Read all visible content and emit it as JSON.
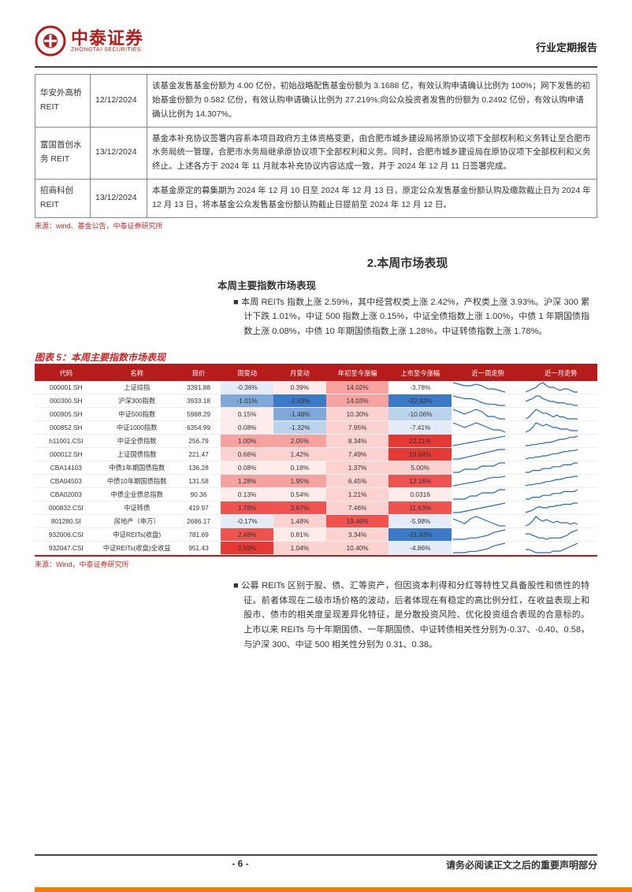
{
  "header": {
    "logo_cn": "中泰证券",
    "logo_en": "ZHONGTAI SECURITIES",
    "report_type": "行业定期报告"
  },
  "top_table": {
    "rows": [
      {
        "name": "华安外高桥REIT",
        "date": "12/12/2024",
        "desc": "该基金发售基金份额为 4.00 亿份，初始战略配售基金份额为 3.1688 亿，有效认购申请确认比例为 100%；网下发售的初始基金份额为 0.582 亿份，有效认购申请确认比例为 27.219%;向公众投资者发售的份额为 0.2492 亿份，有效认购申请确认比例为 14.307%。"
      },
      {
        "name": "富国首创水务 REIT",
        "date": "13/12/2024",
        "desc": "基金本补充协议签署内容系本项目政府方主体资格变更，由合肥市城乡建设局将原协议项下全部权利和义务转让至合肥市水务局统一管理，合肥市水务局继承原协议项下全部权利和义务。同时，合肥市城乡建设局在原协议项下全部权利和义务终止。上述各方于 2024 年 11 月就本补充协议内容达成一致，并于 2024 年 12 月 11 日签署完成。"
      },
      {
        "name": "招商科创REIT",
        "date": "13/12/2024",
        "desc": "本基金原定的募集期为 2024 年 12 月 10 日至 2024 年 12 月 13 日，原定公众发售基金份额认购及缴款截止日为 2024 年 12 月 13 日，将本基金公众发售基金份额认购截止日提前至 2024 年 12 月 12 日。"
      }
    ],
    "source": "来源：wind、基金公告，中泰证券研究所"
  },
  "section": {
    "title": "2.本周市场表现",
    "sub": "本周主要指数市场表现",
    "p1": "本周 REITs 指数上涨 2.59%，其中经营权类上涨 2.42%，产权类上涨 3.93%。沪深 300 累计下跌 1.01%，中证 500 指数上涨 0.15%，中证全债指数上涨 1.00%，中债 1 年期国债指数上涨 0.08%，中债 10 年期国债指数上涨 1.28%，中证转债指数上涨 1.78%。"
  },
  "chart": {
    "caption": "图表 5：本周主要指数市场表现",
    "cols": [
      "代码",
      "名称",
      "现价",
      "周变动",
      "月变动",
      "年初至今涨幅",
      "上市至今涨幅",
      "近一周走势",
      "近一月走势"
    ],
    "col_widths": [
      "62",
      "78",
      "44",
      "52",
      "52",
      "62",
      "62",
      "72",
      "72"
    ],
    "header_bg": "#b71c1c",
    "header_color": "#ffffff",
    "cell_colors": {
      "pos5": "#e53935",
      "pos4": "#ef5350",
      "pos3": "#f6a3a0",
      "pos2": "#fcd2d0",
      "pos1": "#fdecea",
      "neg5": "#1e5fb4",
      "neg4": "#3b7ac9",
      "neg3": "#7fa9db",
      "neg2": "#bcd3ec",
      "neg1": "#e4edf7",
      "zero": "#ffffff"
    },
    "spark_color": "#1e66c9",
    "rows": [
      {
        "code": "000001.SH",
        "name": "上证综指",
        "price": "3391.88",
        "w": {
          "v": "-0.36%",
          "c": "neg1"
        },
        "m": {
          "v": "0.39%",
          "c": "pos1"
        },
        "y": {
          "v": "14.02%",
          "c": "pos3"
        },
        "l": {
          "v": "-3.78%",
          "c": "zero"
        },
        "spw": [
          10,
          9,
          8,
          8,
          9,
          8,
          6,
          6,
          5,
          4
        ],
        "spm": [
          4,
          5,
          6,
          7,
          9,
          10,
          8,
          7,
          7,
          6,
          5,
          6,
          6,
          5,
          4,
          4
        ]
      },
      {
        "code": "000300.SH",
        "name": "沪深300指数",
        "price": "3933.18",
        "w": {
          "v": "-1.01%",
          "c": "neg3"
        },
        "m": {
          "v": "-2.63%",
          "c": "neg4"
        },
        "y": {
          "v": "14.03%",
          "c": "pos3"
        },
        "l": {
          "v": "-22.92%",
          "c": "neg4"
        },
        "spw": [
          10,
          9,
          8,
          8,
          7,
          5,
          4,
          4,
          3,
          3
        ],
        "spm": [
          6,
          7,
          8,
          10,
          10,
          8,
          7,
          6,
          6,
          5,
          5,
          5,
          4,
          4,
          3,
          3
        ]
      },
      {
        "code": "000905.SH",
        "name": "中证500指数",
        "price": "5988.29",
        "w": {
          "v": "0.15%",
          "c": "pos1"
        },
        "m": {
          "v": "-1.48%",
          "c": "neg3"
        },
        "y": {
          "v": "10.30%",
          "c": "pos2"
        },
        "l": {
          "v": "-10.06%",
          "c": "neg2"
        },
        "spw": [
          9,
          8,
          7,
          8,
          9,
          8,
          6,
          6,
          5,
          5
        ],
        "spm": [
          5,
          6,
          8,
          10,
          9,
          8,
          8,
          7,
          6,
          7,
          6,
          6,
          5,
          5,
          5,
          5
        ]
      },
      {
        "code": "000852.SH",
        "name": "中证1000指数",
        "price": "6354.99",
        "w": {
          "v": "0.08%",
          "c": "pos1"
        },
        "m": {
          "v": "-1.32%",
          "c": "neg2"
        },
        "y": {
          "v": "7.95%",
          "c": "pos2"
        },
        "l": {
          "v": "-7.41%",
          "c": "neg1"
        },
        "spw": [
          9,
          8,
          7,
          8,
          9,
          8,
          7,
          6,
          6,
          5
        ],
        "spm": [
          4,
          5,
          7,
          10,
          9,
          8,
          9,
          8,
          7,
          7,
          6,
          6,
          6,
          5,
          5,
          5
        ]
      },
      {
        "code": "h11001.CSI",
        "name": "中证全债指数",
        "price": "256.79",
        "w": {
          "v": "1.00%",
          "c": "pos3"
        },
        "m": {
          "v": "2.05%",
          "c": "pos3"
        },
        "y": {
          "v": "8.34%",
          "c": "pos2"
        },
        "l": {
          "v": "22.21%",
          "c": "pos5"
        },
        "spw": [
          2,
          3,
          4,
          5,
          6,
          7,
          8,
          9,
          10,
          11
        ],
        "spm": [
          2,
          2,
          3,
          3,
          4,
          4,
          5,
          5,
          6,
          7,
          8,
          8,
          9,
          10,
          10,
          11
        ]
      },
      {
        "code": "000012.SH",
        "name": "上证国债指数",
        "price": "221.47",
        "w": {
          "v": "0.66%",
          "c": "pos2"
        },
        "m": {
          "v": "1.42%",
          "c": "pos2"
        },
        "y": {
          "v": "7.49%",
          "c": "pos2"
        },
        "l": {
          "v": "18.64%",
          "c": "pos5"
        },
        "spw": [
          3,
          3,
          4,
          5,
          6,
          7,
          8,
          9,
          10,
          10
        ],
        "spm": [
          2,
          3,
          3,
          4,
          4,
          5,
          5,
          6,
          7,
          7,
          8,
          9,
          9,
          10,
          10,
          11
        ]
      },
      {
        "code": "CBA14103",
        "name": "中债1年期国债指数",
        "price": "136.28",
        "w": {
          "v": "0.08%",
          "c": "pos1"
        },
        "m": {
          "v": "0.18%",
          "c": "pos1"
        },
        "y": {
          "v": "1.37%",
          "c": "pos2"
        },
        "l": {
          "v": "5.00%",
          "c": "pos2"
        },
        "spw": [
          5,
          5,
          6,
          6,
          6,
          7,
          7,
          7,
          8,
          8
        ],
        "spm": [
          4,
          4,
          5,
          5,
          5,
          6,
          6,
          6,
          7,
          7,
          7,
          8,
          8,
          8,
          9,
          9
        ]
      },
      {
        "code": "CBA04503",
        "name": "中债10年期国债指数",
        "price": "131.58",
        "w": {
          "v": "1.28%",
          "c": "pos3"
        },
        "m": {
          "v": "1.95%",
          "c": "pos3"
        },
        "y": {
          "v": "6.45%",
          "c": "pos2"
        },
        "l": {
          "v": "12.16%",
          "c": "pos4"
        },
        "spw": [
          2,
          3,
          4,
          5,
          6,
          7,
          9,
          10,
          10,
          11
        ],
        "spm": [
          2,
          3,
          3,
          4,
          4,
          5,
          6,
          6,
          7,
          8,
          8,
          9,
          10,
          10,
          11,
          11
        ]
      },
      {
        "code": "CBA02003",
        "name": "中债企业债总指数",
        "price": "90.36",
        "w": {
          "v": "0.13%",
          "c": "pos1"
        },
        "m": {
          "v": "0.54%",
          "c": "pos1"
        },
        "y": {
          "v": "1.21%",
          "c": "pos2"
        },
        "l": {
          "v": "0.0316",
          "c": "pos1"
        },
        "spw": [
          5,
          5,
          5,
          6,
          6,
          7,
          7,
          7,
          8,
          8
        ],
        "spm": [
          4,
          4,
          5,
          5,
          5,
          6,
          6,
          6,
          7,
          7,
          7,
          8,
          8,
          8,
          8,
          9
        ]
      },
      {
        "code": "000832.CSI",
        "name": "中证转债",
        "price": "419.97",
        "w": {
          "v": "1.78%",
          "c": "pos4"
        },
        "m": {
          "v": "3.67%",
          "c": "pos4"
        },
        "y": {
          "v": "7.46%",
          "c": "pos2"
        },
        "l": {
          "v": "11.63%",
          "c": "pos4"
        },
        "spw": [
          3,
          3,
          4,
          5,
          6,
          7,
          8,
          9,
          10,
          11
        ],
        "spm": [
          3,
          4,
          5,
          7,
          8,
          7,
          7,
          8,
          8,
          9,
          9,
          10,
          10,
          10,
          11,
          11
        ]
      },
      {
        "code": "801280.SI",
        "name": "房地产（申万）",
        "price": "2686.17",
        "w": {
          "v": "-0.17%",
          "c": "neg1"
        },
        "m": {
          "v": "1.48%",
          "c": "pos2"
        },
        "y": {
          "v": "19.46%",
          "c": "pos4"
        },
        "l": {
          "v": "-5.98%",
          "c": "neg1"
        },
        "spw": [
          8,
          7,
          6,
          8,
          9,
          8,
          7,
          6,
          5,
          5
        ],
        "spm": [
          4,
          5,
          7,
          10,
          8,
          7,
          8,
          7,
          6,
          7,
          6,
          6,
          6,
          5,
          6,
          5
        ]
      },
      {
        "code": "932006.CSI",
        "name": "中证REITs(收盘)",
        "price": "781.69",
        "w": {
          "v": "2.48%",
          "c": "pos4"
        },
        "m": {
          "v": "0.81%",
          "c": "pos1"
        },
        "y": {
          "v": "3.34%",
          "c": "pos2"
        },
        "l": {
          "v": "-21.83%",
          "c": "neg4"
        },
        "spw": [
          4,
          4,
          4,
          5,
          5,
          6,
          7,
          9,
          10,
          11
        ],
        "spm": [
          8,
          8,
          7,
          6,
          5,
          5,
          4,
          5,
          5,
          5,
          5,
          6,
          7,
          9,
          10,
          11
        ]
      },
      {
        "code": "932047.CSI",
        "name": "中证REITs(收盘)全收益",
        "price": "951.43",
        "w": {
          "v": "2.59%",
          "c": "pos5"
        },
        "m": {
          "v": "1.04%",
          "c": "pos2"
        },
        "y": {
          "v": "10.40%",
          "c": "pos2"
        },
        "l": {
          "v": "-4.86%",
          "c": "neg1"
        },
        "spw": [
          4,
          4,
          4,
          5,
          5,
          6,
          7,
          9,
          10,
          11
        ],
        "spm": [
          7,
          7,
          6,
          5,
          5,
          5,
          5,
          5,
          6,
          6,
          6,
          7,
          8,
          9,
          10,
          11
        ]
      }
    ],
    "source": "来源：Wind，中泰证券研究所"
  },
  "para2": "公募 REITs 区别于股、债、汇等资产，但因资本利得和分红等特性又具备股性和债性的特征。前者体现在二级市场价格的波动，后者体现在有稳定的高比例分红，在收益表现上和股市、债市的相关度呈现差异化特征，是分散投资风险、优化投资组合表现的合意标的。上市以来 REITs 与十年期国债、一年期国债、中证转债相关性分别为-0.37、-0.40、0.58，与沪深 300、中证 500 相关性分别为 0.31、0.38。",
  "footer": {
    "page": "- 6 -",
    "note": "请务必阅读正文之后的重要声明部分"
  }
}
